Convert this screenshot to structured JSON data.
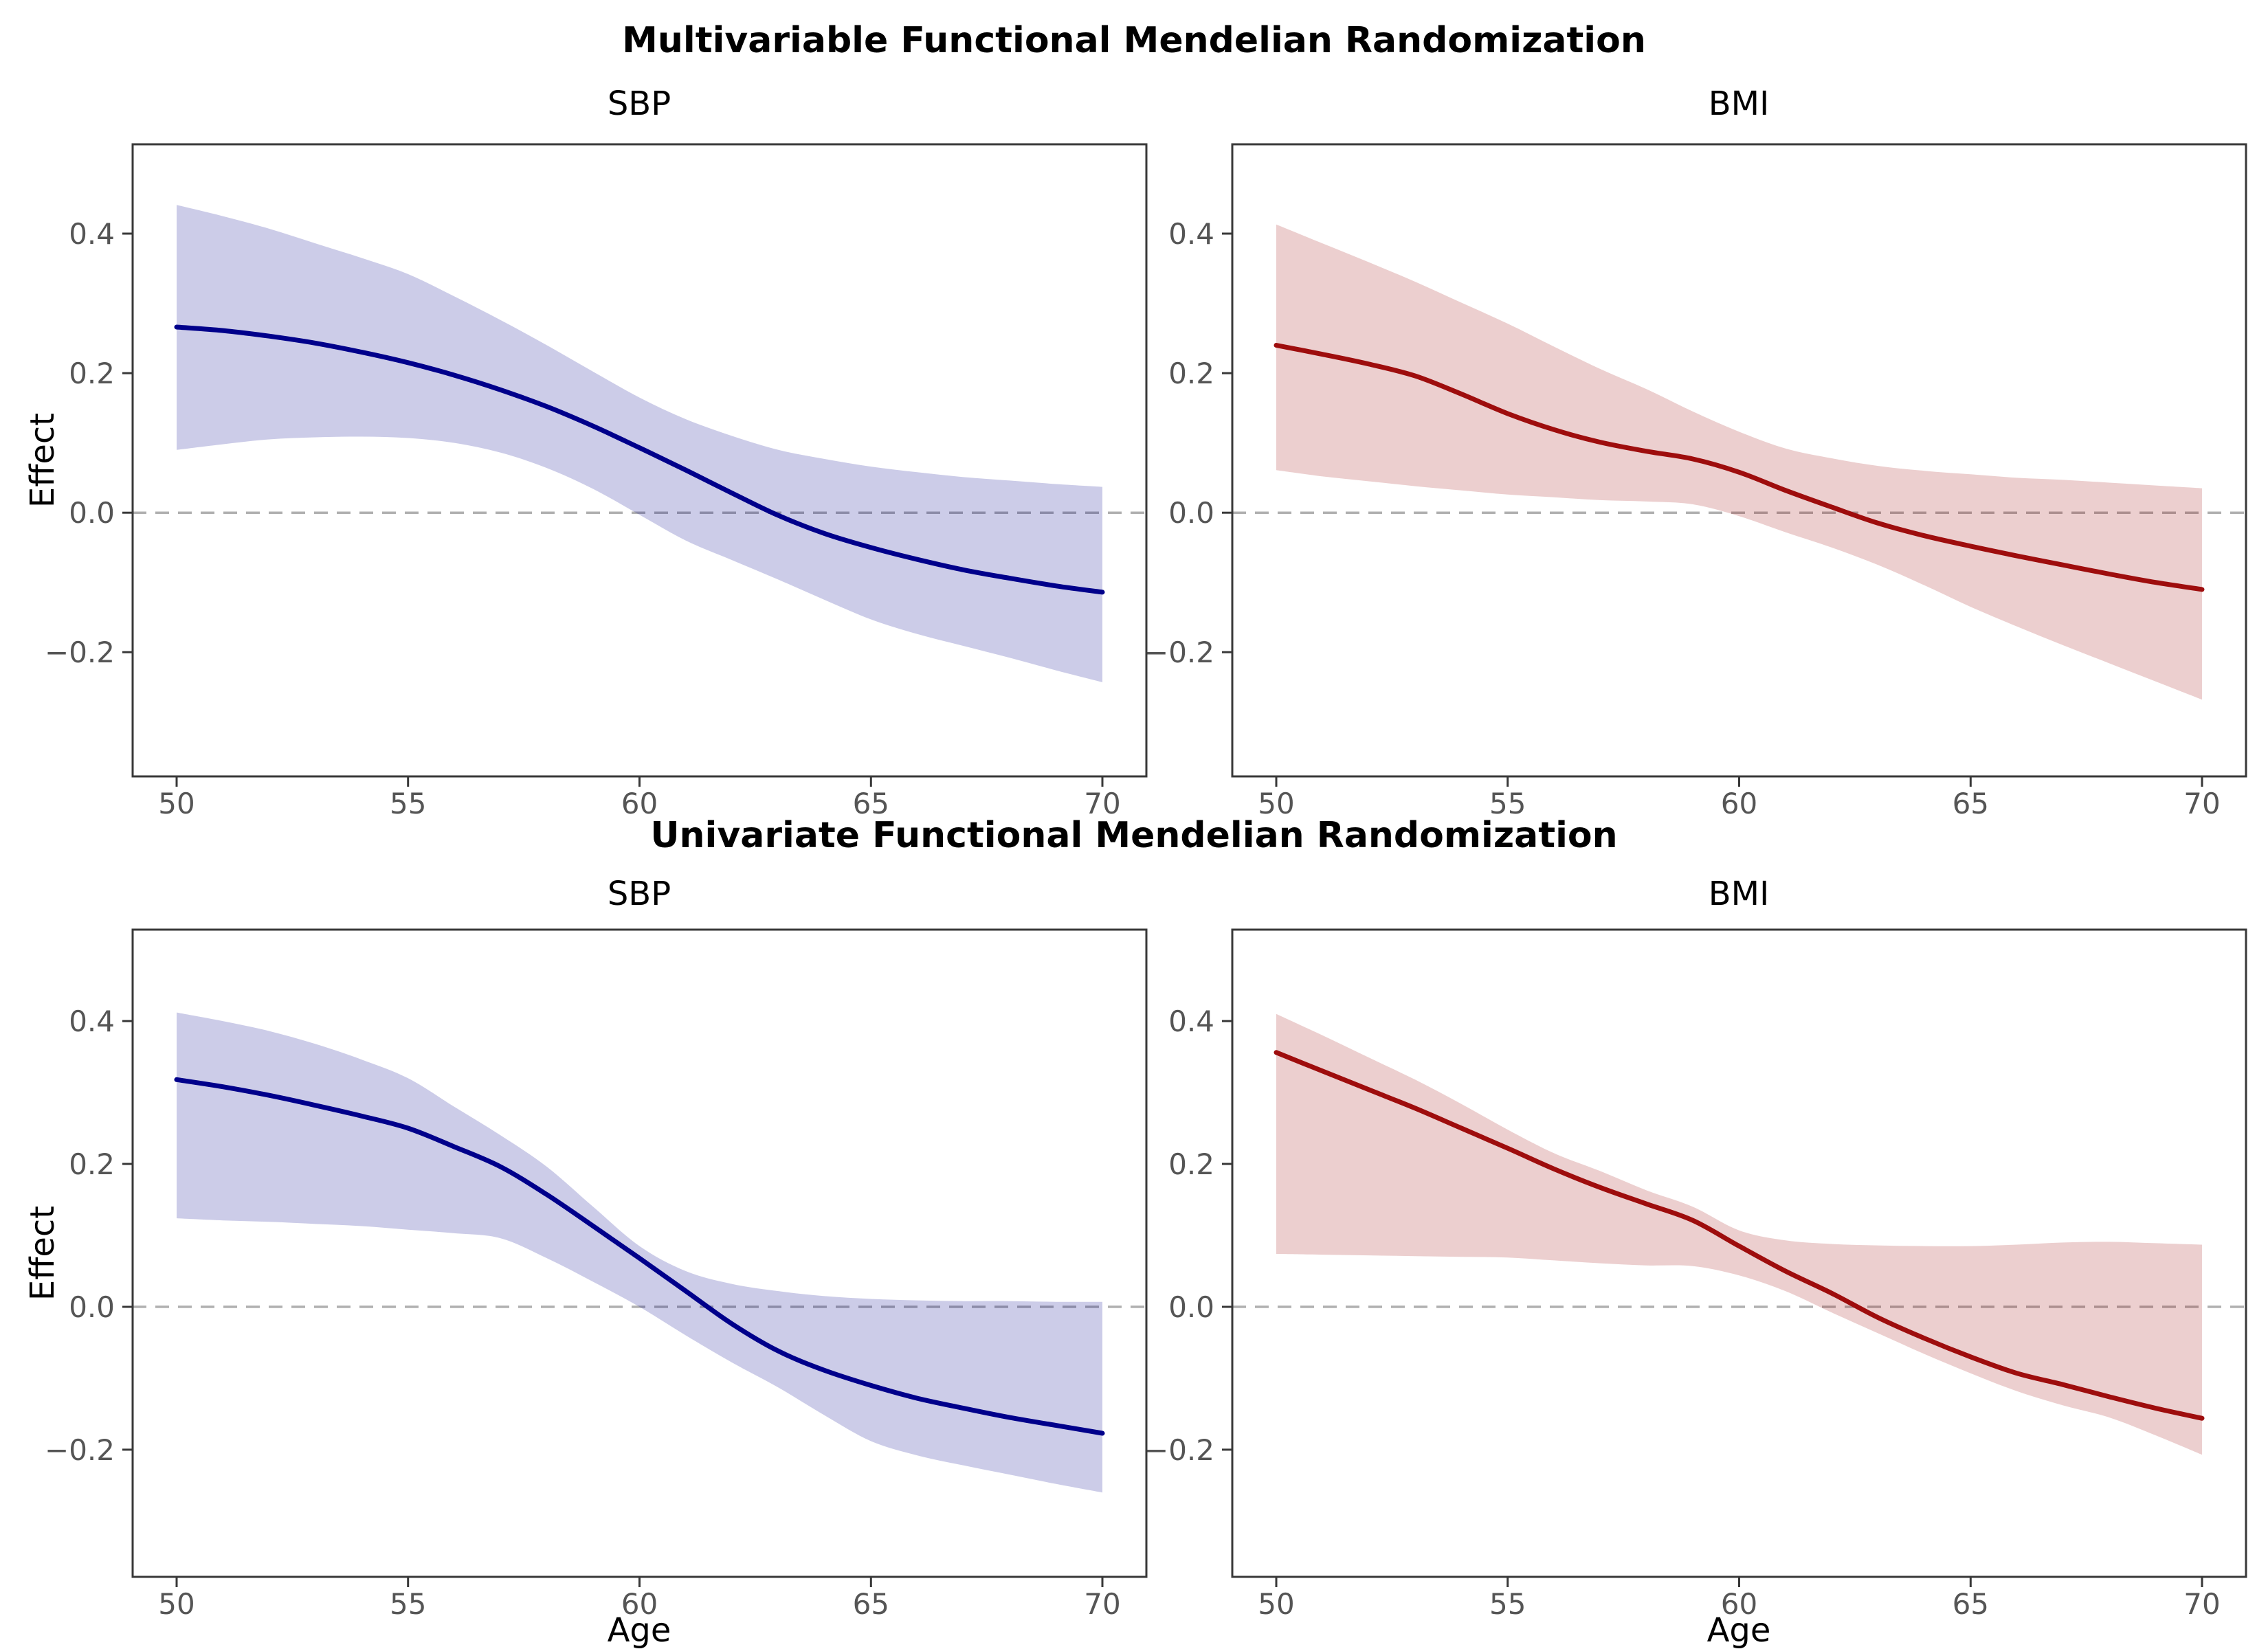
{
  "figure": {
    "background": "#ffffff",
    "axis": {
      "spine_color": "#383838",
      "tick_label_color": "#555555",
      "zero_line_color": "#b0b0b0"
    }
  },
  "sections": [
    {
      "title": "Multivariable Functional Mendelian Randomization"
    },
    {
      "title": "Univariate Functional Mendelian Randomization"
    }
  ],
  "chart_data": [
    {
      "type": "line",
      "section": "Multivariable Functional Mendelian Randomization",
      "title": "SBP",
      "xlabel": "",
      "ylabel": "Effect",
      "line_color": "#00008B",
      "band_color": "#00008B",
      "band_opacity": 0.2,
      "xlim": [
        49.05,
        70.95
      ],
      "ylim": [
        -0.378,
        0.528
      ],
      "xticks": [
        50,
        55,
        60,
        65,
        70
      ],
      "xtick_labels": [
        "50",
        "55",
        "60",
        "65",
        "70"
      ],
      "yticks": [
        -0.2,
        0.0,
        0.2,
        0.4
      ],
      "ytick_labels": [
        "−0.2",
        "0.0",
        "0.2",
        "0.4"
      ],
      "zero_line": 0.0,
      "x": [
        50,
        51,
        52,
        53,
        54,
        55,
        56,
        57,
        58,
        59,
        60,
        61,
        62,
        63,
        64,
        65,
        66,
        67,
        68,
        69,
        70
      ],
      "effect": [
        0.266,
        0.261,
        0.253,
        0.243,
        0.23,
        0.215,
        0.197,
        0.176,
        0.152,
        0.124,
        0.093,
        0.061,
        0.028,
        -0.004,
        -0.03,
        -0.05,
        -0.067,
        -0.082,
        -0.094,
        -0.105,
        -0.114
      ],
      "ci_upper": [
        0.441,
        0.425,
        0.407,
        0.386,
        0.365,
        0.342,
        0.31,
        0.276,
        0.24,
        0.202,
        0.165,
        0.134,
        0.11,
        0.09,
        0.077,
        0.066,
        0.058,
        0.051,
        0.046,
        0.041,
        0.037
      ],
      "ci_lower": [
        0.09,
        0.098,
        0.105,
        0.108,
        0.109,
        0.107,
        0.1,
        0.086,
        0.064,
        0.034,
        -0.003,
        -0.04,
        -0.068,
        -0.096,
        -0.125,
        -0.153,
        -0.174,
        -0.191,
        -0.208,
        -0.226,
        -0.243
      ]
    },
    {
      "type": "line",
      "section": "Multivariable Functional Mendelian Randomization",
      "title": "BMI",
      "xlabel": "",
      "ylabel": "",
      "line_color": "#9E0D0D",
      "band_color": "#9E0D0D",
      "band_opacity": 0.2,
      "xlim": [
        49.05,
        70.95
      ],
      "ylim": [
        -0.378,
        0.528
      ],
      "xticks": [
        50,
        55,
        60,
        65,
        70
      ],
      "xtick_labels": [
        "50",
        "55",
        "60",
        "65",
        "70"
      ],
      "yticks": [
        -0.2,
        0.0,
        0.2,
        0.4
      ],
      "ytick_labels": [
        "−0.2",
        "0.0",
        "0.2",
        "0.4"
      ],
      "zero_line": 0.0,
      "x": [
        50,
        51,
        52,
        53,
        54,
        55,
        56,
        57,
        58,
        59,
        60,
        61,
        62,
        63,
        64,
        65,
        66,
        67,
        68,
        69,
        70
      ],
      "effect": [
        0.24,
        0.227,
        0.213,
        0.196,
        0.17,
        0.142,
        0.119,
        0.101,
        0.088,
        0.077,
        0.058,
        0.032,
        0.008,
        -0.015,
        -0.033,
        -0.048,
        -0.062,
        -0.075,
        -0.088,
        -0.1,
        -0.11
      ],
      "ci_upper": [
        0.413,
        0.386,
        0.359,
        0.331,
        0.301,
        0.271,
        0.238,
        0.206,
        0.177,
        0.145,
        0.116,
        0.092,
        0.078,
        0.067,
        0.06,
        0.055,
        0.05,
        0.047,
        0.043,
        0.039,
        0.035
      ],
      "ci_lower": [
        0.061,
        0.052,
        0.045,
        0.038,
        0.032,
        0.026,
        0.022,
        0.018,
        0.016,
        0.012,
        -0.005,
        -0.028,
        -0.05,
        -0.075,
        -0.104,
        -0.135,
        -0.163,
        -0.19,
        -0.216,
        -0.242,
        -0.268
      ]
    },
    {
      "type": "line",
      "section": "Univariate Functional Mendelian Randomization",
      "title": "SBP",
      "xlabel": "Age",
      "ylabel": "Effect",
      "line_color": "#00008B",
      "band_color": "#00008B",
      "band_opacity": 0.2,
      "xlim": [
        49.05,
        70.95
      ],
      "ylim": [
        -0.378,
        0.528
      ],
      "xticks": [
        50,
        55,
        60,
        65,
        70
      ],
      "xtick_labels": [
        "50",
        "55",
        "60",
        "65",
        "70"
      ],
      "yticks": [
        -0.2,
        0.0,
        0.2,
        0.4
      ],
      "ytick_labels": [
        "−0.2",
        "0.0",
        "0.2",
        "0.4"
      ],
      "zero_line": 0.0,
      "x": [
        50,
        51,
        52,
        53,
        54,
        55,
        56,
        57,
        58,
        59,
        60,
        61,
        62,
        63,
        64,
        65,
        66,
        67,
        68,
        69,
        70
      ],
      "effect": [
        0.318,
        0.308,
        0.296,
        0.282,
        0.267,
        0.25,
        0.224,
        0.196,
        0.157,
        0.113,
        0.068,
        0.022,
        -0.024,
        -0.062,
        -0.089,
        -0.11,
        -0.128,
        -0.142,
        -0.155,
        -0.166,
        -0.177
      ],
      "ci_upper": [
        0.412,
        0.4,
        0.386,
        0.368,
        0.346,
        0.32,
        0.28,
        0.24,
        0.196,
        0.14,
        0.085,
        0.05,
        0.032,
        0.022,
        0.015,
        0.011,
        0.009,
        0.008,
        0.008,
        0.007,
        0.007
      ],
      "ci_lower": [
        0.124,
        0.121,
        0.119,
        0.116,
        0.113,
        0.108,
        0.103,
        0.096,
        0.068,
        0.035,
        0.0,
        -0.04,
        -0.078,
        -0.113,
        -0.152,
        -0.188,
        -0.208,
        -0.222,
        -0.235,
        -0.248,
        -0.26
      ]
    },
    {
      "type": "line",
      "section": "Univariate Functional Mendelian Randomization",
      "title": "BMI",
      "xlabel": "Age",
      "ylabel": "",
      "line_color": "#9E0D0D",
      "band_color": "#9E0D0D",
      "band_opacity": 0.2,
      "xlim": [
        49.05,
        70.95
      ],
      "ylim": [
        -0.378,
        0.528
      ],
      "xticks": [
        50,
        55,
        60,
        65,
        70
      ],
      "xtick_labels": [
        "50",
        "55",
        "60",
        "65",
        "70"
      ],
      "yticks": [
        -0.2,
        0.0,
        0.2,
        0.4
      ],
      "ytick_labels": [
        "−0.2",
        "0.0",
        "0.2",
        "0.4"
      ],
      "zero_line": 0.0,
      "x": [
        50,
        51,
        52,
        53,
        54,
        55,
        56,
        57,
        58,
        59,
        60,
        61,
        62,
        63,
        64,
        65,
        66,
        67,
        68,
        69,
        70
      ],
      "effect": [
        0.356,
        0.33,
        0.304,
        0.278,
        0.25,
        0.222,
        0.193,
        0.167,
        0.144,
        0.121,
        0.085,
        0.05,
        0.019,
        -0.015,
        -0.044,
        -0.07,
        -0.093,
        -0.109,
        -0.126,
        -0.142,
        -0.156
      ],
      "ci_upper": [
        0.41,
        0.38,
        0.349,
        0.318,
        0.284,
        0.248,
        0.215,
        0.19,
        0.163,
        0.14,
        0.107,
        0.093,
        0.088,
        0.086,
        0.085,
        0.085,
        0.087,
        0.09,
        0.091,
        0.089,
        0.087
      ],
      "ci_lower": [
        0.074,
        0.073,
        0.072,
        0.071,
        0.07,
        0.069,
        0.065,
        0.061,
        0.058,
        0.057,
        0.044,
        0.022,
        -0.008,
        -0.037,
        -0.066,
        -0.093,
        -0.118,
        -0.138,
        -0.155,
        -0.18,
        -0.207
      ]
    }
  ]
}
